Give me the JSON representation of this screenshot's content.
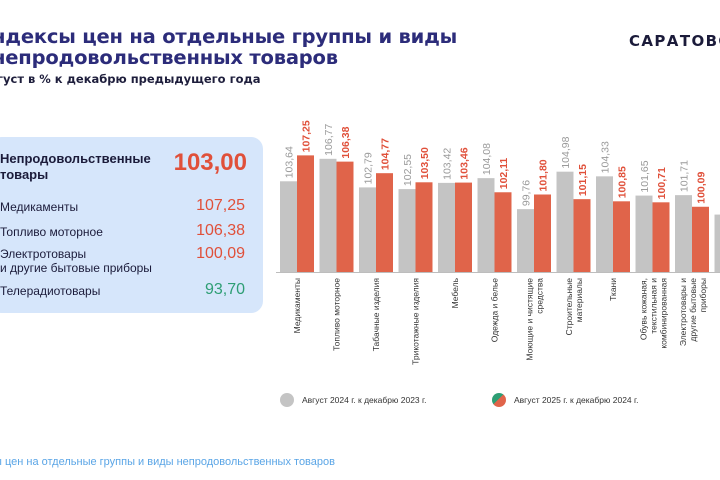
{
  "header": {
    "title": "ндексы цен на отдельные группы и виды\nнепродовольственных товаров",
    "subtitle": "густ в % к декабрю предыдущего года",
    "brand": "САРАТОВС"
  },
  "summary": {
    "headline": {
      "label": "Непродовольственные товары",
      "value": "103,00"
    },
    "items": [
      {
        "label": "Медикаменты",
        "value": "107,25",
        "color": "#e0503a"
      },
      {
        "label": "Топливо моторное",
        "value": "106,38",
        "color": "#e0503a"
      },
      {
        "label": "Электротовары\nи другие бытовые приборы",
        "value": "100,09",
        "color": "#e0503a"
      },
      {
        "label": "Телерадиотовары",
        "value": "93,70",
        "color": "#2e9e74"
      }
    ]
  },
  "chart_data": {
    "type": "bar",
    "categories": [
      "Медикаменты",
      "Топливо моторное",
      "Табачные изделия",
      "Трикотажные изделия",
      "Мебель",
      "Одежда и белье",
      "Моющие и чистящие средства",
      "Строительные материалы",
      "Ткани",
      "Обувь кожаная, текстильная и комбинированная",
      "Электротовары и другие бытовые приборы",
      ""
    ],
    "series": [
      {
        "name": "Август  2024 г. к  декабрю 2023 г.",
        "color": "#c4c4c4",
        "values": [
          103.64,
          106.77,
          102.79,
          102.55,
          103.42,
          104.08,
          99.76,
          104.98,
          104.33,
          101.65,
          101.71,
          99.0
        ],
        "labels": [
          "103,64",
          "106,77",
          "102,79",
          "102,55",
          "103,42",
          "104,08",
          "99,76",
          "104,98",
          "104,33",
          "101,65",
          "101,71",
          ""
        ]
      },
      {
        "name": "Август  2025 г. к декабрю 2024 г.",
        "color": "#e0644a",
        "values": [
          107.25,
          106.38,
          104.77,
          103.5,
          103.46,
          102.11,
          101.8,
          101.15,
          100.85,
          100.71,
          100.09,
          null
        ],
        "labels": [
          "107,25",
          "106,38",
          "104,77",
          "103,50",
          "103,46",
          "102,11",
          "101,80",
          "101,15",
          "100,85",
          "100,71",
          "100,09",
          ""
        ]
      }
    ],
    "ylim": [
      91,
      108
    ],
    "grid": false,
    "legend": "bottom"
  },
  "footer": {
    "text": "ы цен на отдельные группы и виды непродовольственных товаров"
  }
}
